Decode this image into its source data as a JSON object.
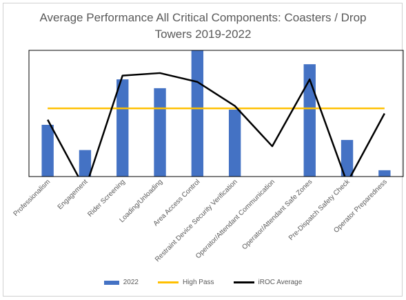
{
  "chart_data": {
    "type": "bar",
    "title": "Average Performance All Critical Components: Coasters / Drop Towers 2019-2022",
    "title_lines": [
      "Average Performance All Critical Components: Coasters / Drop",
      "Towers 2019-2022"
    ],
    "categories": [
      "Professionalism",
      "Engagement",
      "Rider Screening",
      "Loading/Unloading",
      "Area Access Control",
      "Restraint Device Security Verification",
      "Operator/Attendant Communication",
      "Operator/Attendant Safe Zones",
      "Pre-Dispatch Safety Check",
      "Operator Preparedness"
    ],
    "ylim": [
      0,
      100
    ],
    "grid": false,
    "legend_position": "bottom",
    "series": [
      {
        "name": "2022",
        "kind": "bar",
        "color": "#4472C4",
        "values": [
          41,
          21,
          77,
          70,
          100,
          53,
          0,
          89,
          29,
          5
        ]
      },
      {
        "name": "High Pass",
        "kind": "line",
        "color": "#FFC000",
        "values": [
          54,
          54,
          54,
          54,
          54,
          54,
          54,
          54,
          54,
          54
        ]
      },
      {
        "name": "iROC Average",
        "kind": "line",
        "color": "#000000",
        "values": [
          45,
          -10,
          80,
          82,
          75,
          56,
          24,
          77,
          -5,
          50
        ]
      }
    ]
  }
}
